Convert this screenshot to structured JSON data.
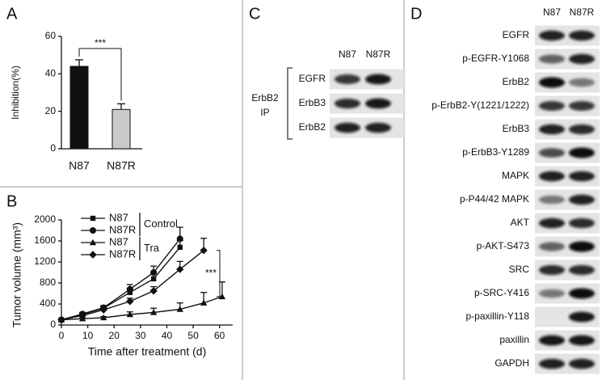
{
  "panels": [
    "A",
    "B",
    "C",
    "D"
  ],
  "chart_data": [
    {
      "type": "bar",
      "categories": [
        "N87",
        "N87R"
      ],
      "values": [
        44,
        21
      ],
      "errors": [
        3.5,
        3
      ],
      "colors": [
        "#111111",
        "#c8cacb"
      ],
      "ylabel": "Inhibition(%)",
      "ylim": [
        0,
        60
      ],
      "yticks": [
        0,
        20,
        40,
        60
      ],
      "annotation": "***"
    },
    {
      "type": "line",
      "xlabel": "Time after treatment (d)",
      "ylabel": "Tumor volume (mm³)",
      "xlim": [
        0,
        65
      ],
      "xticks": [
        0,
        10,
        20,
        30,
        40,
        50,
        60
      ],
      "ylim": [
        0,
        2000
      ],
      "yticks": [
        0,
        400,
        800,
        1200,
        1600,
        2000
      ],
      "groups": [
        "Control",
        "Tra"
      ],
      "annotation": "***",
      "series": [
        {
          "name": "N87",
          "group": "Control",
          "marker": "square",
          "color": "#111111",
          "x": [
            0,
            8,
            16,
            26,
            35,
            45
          ],
          "values": [
            100,
            200,
            320,
            620,
            880,
            1480
          ],
          "errors": [
            20,
            30,
            40,
            80,
            100,
            130
          ]
        },
        {
          "name": "N87R",
          "group": "Control",
          "marker": "circle",
          "color": "#111111",
          "x": [
            0,
            8,
            16,
            26,
            35,
            45
          ],
          "values": [
            100,
            210,
            330,
            680,
            1000,
            1640
          ],
          "errors": [
            20,
            30,
            40,
            90,
            120,
            220
          ]
        },
        {
          "name": "N87",
          "group": "Tra",
          "marker": "triangle",
          "color": "#111111",
          "x": [
            0,
            8,
            16,
            26,
            35,
            45,
            54,
            61
          ],
          "values": [
            100,
            120,
            140,
            200,
            240,
            300,
            420,
            540
          ],
          "errors": [
            20,
            20,
            20,
            50,
            80,
            120,
            200,
            280
          ]
        },
        {
          "name": "N87R",
          "group": "Tra",
          "marker": "diamond",
          "color": "#111111",
          "x": [
            0,
            8,
            16,
            26,
            35,
            45,
            54
          ],
          "values": [
            100,
            180,
            290,
            450,
            650,
            1060,
            1420
          ],
          "errors": [
            20,
            30,
            40,
            60,
            80,
            150,
            230
          ]
        }
      ]
    }
  ],
  "blot_c": {
    "columns": [
      "N87",
      "N87R"
    ],
    "group": [
      "ErbB2",
      "IP"
    ],
    "rows": [
      "EGFR",
      "ErbB3",
      "ErbB2"
    ]
  },
  "blot_d": {
    "columns": [
      "N87",
      "N87R"
    ],
    "rows": [
      "EGFR",
      "p-EGFR-Y1068",
      "ErbB2",
      "p-ErbB2-Y(1221/1222)",
      "ErbB3",
      "p-ErbB3-Y1289",
      "MAPK",
      "p-P44/42 MAPK",
      "AKT",
      "p-AKT-S473",
      "SRC",
      "p-SRC-Y416",
      "p-paxillin-Y118",
      "paxillin",
      "GAPDH"
    ]
  }
}
